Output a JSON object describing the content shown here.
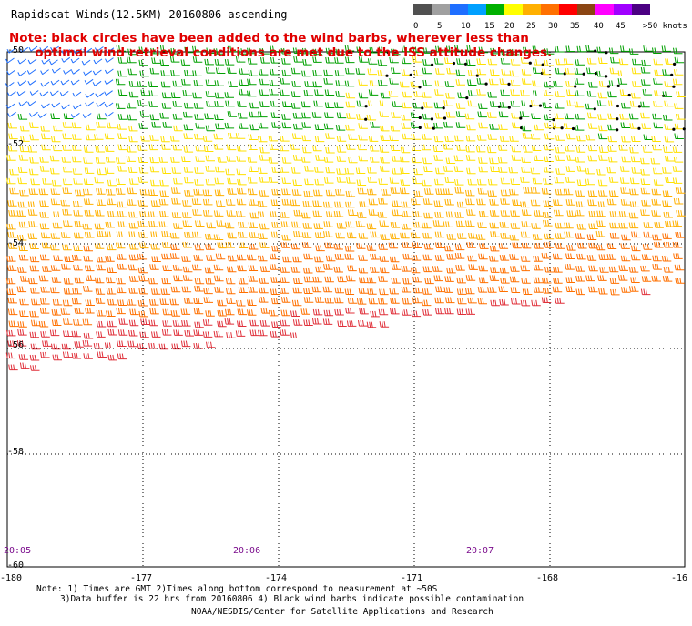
{
  "title": "Rapidscat Winds(12.5KM) 20160806 ascending",
  "note": "Note: black circles have been added to the wind barbs, wherever less than optimal wind retrieval conditions are met due to the ISS attitude changes.",
  "note_lines": [
    "Note: black circles have been added to the wind barbs, wherever less than",
    "      optimal wind retrieval conditions are met due to the ISS attitude changes."
  ],
  "color_scale": {
    "labels": [
      "0",
      "5",
      "10",
      "15",
      "20",
      "25",
      "30",
      "35",
      "40",
      "45",
      ">50 knots"
    ],
    "colors": [
      "#505050",
      "#a0a0a0",
      "#1f6fff",
      "#00a0ff",
      "#00b000",
      "#ffff00",
      "#ffb000",
      "#ff7000",
      "#ff0000",
      "#8b4513",
      "#ff00ff",
      "#a000ff",
      "#4b0082"
    ]
  },
  "map": {
    "lon_labels": [
      "-180",
      "-177",
      "-174",
      "-171",
      "-168",
      "-16"
    ],
    "lat_labels": [
      "-50",
      "-52",
      "-54",
      "-56",
      "-58",
      "-60"
    ],
    "time_labels": [
      "20:05",
      "20:06",
      "20:07"
    ],
    "lon_range": [
      -180,
      -165
    ],
    "lat_range": [
      -50,
      -60
    ],
    "grid": "dotted",
    "wind_bands": [
      {
        "speed_knots": "10-15",
        "color": "#1f6fff"
      },
      {
        "speed_knots": "15-20",
        "color": "#00a000"
      },
      {
        "speed_knots": "20-25",
        "color": "#ffe000"
      },
      {
        "speed_knots": "25-30",
        "color": "#ffb000"
      },
      {
        "speed_knots": "30-35",
        "color": "#ff7000"
      },
      {
        "speed_knots": "35-40",
        "color": "#e0303a"
      }
    ]
  },
  "footer": {
    "line1": "Note: 1) Times are GMT 2)Times along bottom correspond to measurement at ~50S",
    "line2": "3)Data buffer is 22 hrs from 20160806 4) Black wind barbs indicate possible contamination",
    "line3": "NOAA/NESDIS/Center for Satellite Applications and Research"
  }
}
